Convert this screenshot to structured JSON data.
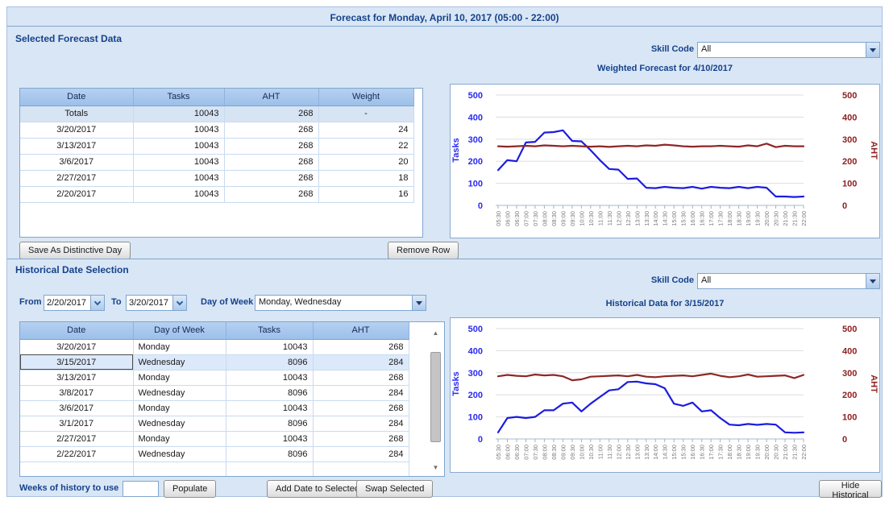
{
  "header": {
    "title": "Forecast for Monday, April 10, 2017 (05:00 - 22:00)"
  },
  "colors": {
    "accent_blue": "#15428b",
    "tasks_line": "#1c1ce0",
    "aht_line": "#8e2727",
    "panel_bg": "#d9e6f5",
    "grid_header_bg": "#9cc0ea",
    "selected_row": "#dce9fa"
  },
  "forecast_section": {
    "title": "Selected Forecast Data",
    "skill_code_label": "Skill Code",
    "skill_code_value": "All",
    "table": {
      "columns": [
        "Date",
        "Tasks",
        "AHT",
        "Weight"
      ],
      "totals_row": [
        "Totals",
        "10043",
        "268",
        "-"
      ],
      "rows": [
        [
          "3/20/2017",
          "10043",
          "268",
          "24"
        ],
        [
          "3/13/2017",
          "10043",
          "268",
          "22"
        ],
        [
          "3/6/2017",
          "10043",
          "268",
          "20"
        ],
        [
          "2/27/2017",
          "10043",
          "268",
          "18"
        ],
        [
          "2/20/2017",
          "10043",
          "268",
          "16"
        ]
      ]
    },
    "save_button": "Save As Distinctive Day",
    "remove_button": "Remove Row"
  },
  "historical_section": {
    "title": "Historical Date Selection",
    "skill_code_label": "Skill Code",
    "skill_code_value": "All",
    "from_label": "From",
    "from_value": "2/20/2017",
    "to_label": "To",
    "to_value": "3/20/2017",
    "day_of_week_label": "Day of Week",
    "day_of_week_value": "Monday, Wednesday",
    "table": {
      "columns": [
        "Date",
        "Day of Week",
        "Tasks",
        "AHT"
      ],
      "rows": [
        [
          "3/20/2017",
          "Monday",
          "10043",
          "268"
        ],
        [
          "3/15/2017",
          "Wednesday",
          "8096",
          "284"
        ],
        [
          "3/13/2017",
          "Monday",
          "10043",
          "268"
        ],
        [
          "3/8/2017",
          "Wednesday",
          "8096",
          "284"
        ],
        [
          "3/6/2017",
          "Monday",
          "10043",
          "268"
        ],
        [
          "3/1/2017",
          "Wednesday",
          "8096",
          "284"
        ],
        [
          "2/27/2017",
          "Monday",
          "10043",
          "268"
        ],
        [
          "2/22/2017",
          "Wednesday",
          "8096",
          "284"
        ]
      ],
      "selected_row_index": 1
    },
    "weeks_label": "Weeks of history to use",
    "weeks_value": "",
    "populate_button": "Populate",
    "add_button": "Add Date to Selected",
    "swap_button": "Swap Selected",
    "hide_button": "Hide Historical"
  },
  "chart_data": [
    {
      "type": "line",
      "title": "Weighted Forecast for 4/10/2017",
      "ylabel_left": "Tasks",
      "ylabel_right": "AHT",
      "ylim": [
        0,
        500
      ],
      "grid": true,
      "legend": "none",
      "x": [
        "05:30",
        "06:00",
        "06:30",
        "07:00",
        "07:30",
        "08:00",
        "08:30",
        "09:00",
        "09:30",
        "10:00",
        "10:30",
        "11:00",
        "11:30",
        "12:00",
        "12:30",
        "13:00",
        "13:30",
        "14:00",
        "14:30",
        "15:00",
        "15:30",
        "16:00",
        "16:30",
        "17:00",
        "17:30",
        "18:00",
        "18:30",
        "19:00",
        "19:30",
        "20:00",
        "20:30",
        "21:00",
        "21:30",
        "22:00"
      ],
      "series": [
        {
          "name": "Tasks",
          "axis": "left",
          "color": "#1c1ce0",
          "values": [
            160,
            205,
            200,
            285,
            288,
            330,
            332,
            340,
            292,
            290,
            250,
            205,
            165,
            162,
            120,
            122,
            80,
            78,
            84,
            80,
            78,
            84,
            76,
            84,
            80,
            78,
            84,
            78,
            84,
            80,
            40,
            40,
            38,
            40
          ]
        },
        {
          "name": "AHT",
          "axis": "right",
          "color": "#8e2727",
          "values": [
            268,
            266,
            268,
            270,
            268,
            272,
            270,
            268,
            270,
            268,
            266,
            268,
            265,
            268,
            270,
            268,
            272,
            270,
            275,
            272,
            268,
            266,
            268,
            268,
            270,
            268,
            266,
            272,
            268,
            280,
            264,
            270,
            268,
            268
          ]
        }
      ]
    },
    {
      "type": "line",
      "title": "Historical Data for 3/15/2017",
      "ylabel_left": "Tasks",
      "ylabel_right": "AHT",
      "ylim": [
        0,
        500
      ],
      "grid": true,
      "legend": "none",
      "x": [
        "05:30",
        "06:00",
        "06:30",
        "07:00",
        "07:30",
        "08:00",
        "08:30",
        "09:00",
        "09:30",
        "10:00",
        "10:30",
        "11:00",
        "11:30",
        "12:00",
        "12:30",
        "13:00",
        "13:30",
        "14:00",
        "14:30",
        "15:00",
        "15:30",
        "16:00",
        "16:30",
        "17:00",
        "17:30",
        "18:00",
        "18:30",
        "19:00",
        "19:30",
        "20:00",
        "20:30",
        "21:00",
        "21:30",
        "22:00"
      ],
      "series": [
        {
          "name": "Tasks",
          "axis": "left",
          "color": "#1c1ce0",
          "values": [
            30,
            95,
            100,
            95,
            100,
            130,
            130,
            160,
            165,
            125,
            160,
            190,
            220,
            225,
            258,
            260,
            252,
            248,
            230,
            160,
            150,
            165,
            125,
            130,
            95,
            65,
            62,
            68,
            64,
            68,
            65,
            30,
            28,
            30
          ]
        },
        {
          "name": "AHT",
          "axis": "right",
          "color": "#8e2727",
          "values": [
            284,
            290,
            286,
            284,
            292,
            288,
            290,
            284,
            266,
            270,
            282,
            284,
            286,
            288,
            284,
            290,
            282,
            280,
            284,
            286,
            288,
            284,
            290,
            296,
            286,
            280,
            284,
            292,
            282,
            284,
            286,
            288,
            276,
            290
          ]
        }
      ]
    }
  ]
}
